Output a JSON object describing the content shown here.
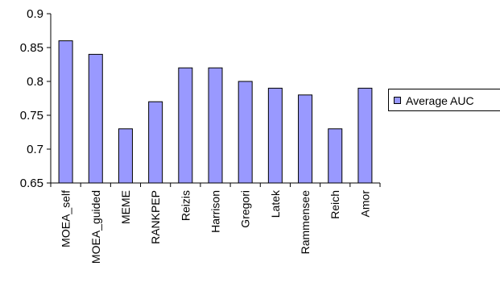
{
  "chart_data": {
    "type": "bar",
    "categories": [
      "MOEA_self",
      "MOEA_guided",
      "MEME",
      "RANKPEP",
      "Reizis",
      "Harrison",
      "Gregori",
      "Latek",
      "Rammensee",
      "Reich",
      "Amor"
    ],
    "series": [
      {
        "name": "Average AUC",
        "values": [
          0.86,
          0.84,
          0.73,
          0.77,
          0.82,
          0.82,
          0.8,
          0.79,
          0.78,
          0.73,
          0.79
        ]
      }
    ],
    "ylim": [
      0.65,
      0.9
    ],
    "yticks": [
      "0.9",
      "0.85",
      "0.8",
      "0.75",
      "0.7",
      "0.65"
    ],
    "grid": false,
    "legend_position": "right",
    "colors": {
      "bar_fill": "#9999ff",
      "bar_stroke": "#000000",
      "axis": "#000000"
    }
  }
}
